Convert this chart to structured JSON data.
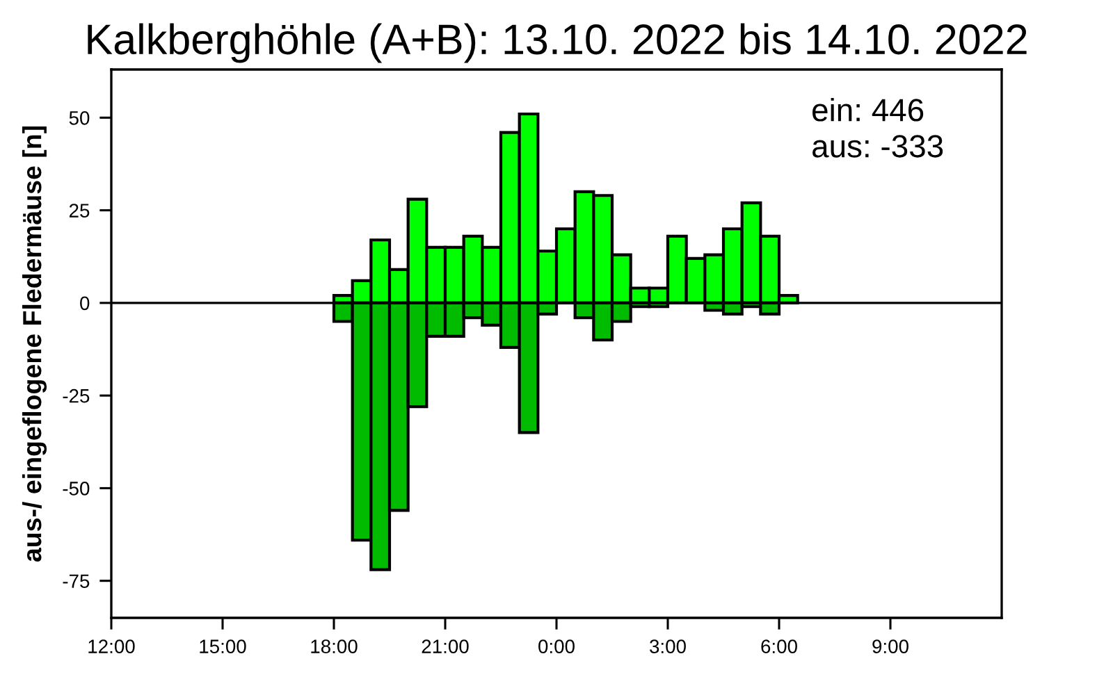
{
  "chart_data": {
    "type": "bar",
    "stacked": true,
    "title": "Kalkberghöhle (A+B): 13.10. 2022 bis 14.10. 2022",
    "ylabel": "aus-/ eingeflogene Fledermäuse [n]",
    "annotations": [
      "ein: 446",
      "aus: -333"
    ],
    "x": [
      "2022-10-13T18:15",
      "2022-10-13T18:45",
      "2022-10-13T19:15",
      "2022-10-13T19:45",
      "2022-10-13T20:15",
      "2022-10-13T20:45",
      "2022-10-13T21:15",
      "2022-10-13T21:45",
      "2022-10-13T22:15",
      "2022-10-13T22:45",
      "2022-10-13T23:15",
      "2022-10-13T23:45",
      "2022-10-14T00:15",
      "2022-10-14T00:45",
      "2022-10-14T01:15",
      "2022-10-14T01:45",
      "2022-10-14T02:15",
      "2022-10-14T02:45",
      "2022-10-14T03:15",
      "2022-10-14T03:45",
      "2022-10-14T04:15",
      "2022-10-14T04:45",
      "2022-10-14T05:15",
      "2022-10-14T05:45",
      "2022-10-14T06:15"
    ],
    "series": [
      {
        "color": "#00ff00",
        "values": [
          2,
          6,
          17,
          9,
          28,
          15,
          15,
          18,
          15,
          46,
          51,
          14,
          20,
          30,
          29,
          13,
          4,
          4,
          18,
          12,
          13,
          20,
          27,
          18,
          2
        ]
      },
      {
        "color": "#00bb00",
        "values": [
          -5,
          -64,
          -72,
          -56,
          -28,
          -9,
          -9,
          -4,
          -6,
          -12,
          -35,
          -3,
          0,
          -4,
          -10,
          -5,
          -1,
          -1,
          0,
          0,
          -2,
          -3,
          -1,
          -3,
          0
        ]
      }
    ],
    "xlim": [
      "2022-10-13T12:00",
      "2022-10-14T12:00"
    ],
    "xticks": [
      {
        "value": "2022-10-13T12:00",
        "label": "12:00"
      },
      {
        "value": "2022-10-13T15:00",
        "label": "15:00"
      },
      {
        "value": "2022-10-13T18:00",
        "label": "18:00"
      },
      {
        "value": "2022-10-13T21:00",
        "label": "21:00"
      },
      {
        "value": "2022-10-14T00:00",
        "label": "0:00"
      },
      {
        "value": "2022-10-14T03:00",
        "label": "3:00"
      },
      {
        "value": "2022-10-14T06:00",
        "label": "6:00"
      },
      {
        "value": "2022-10-14T09:00",
        "label": "9:00"
      }
    ],
    "ylim": [
      -85,
      63
    ],
    "yticks": [
      50,
      25,
      0,
      -25,
      -50,
      -75
    ],
    "ref_lines": [
      {
        "axis": "y",
        "value": 0,
        "color": "#000000"
      }
    ],
    "grid": false,
    "legend": false
  }
}
